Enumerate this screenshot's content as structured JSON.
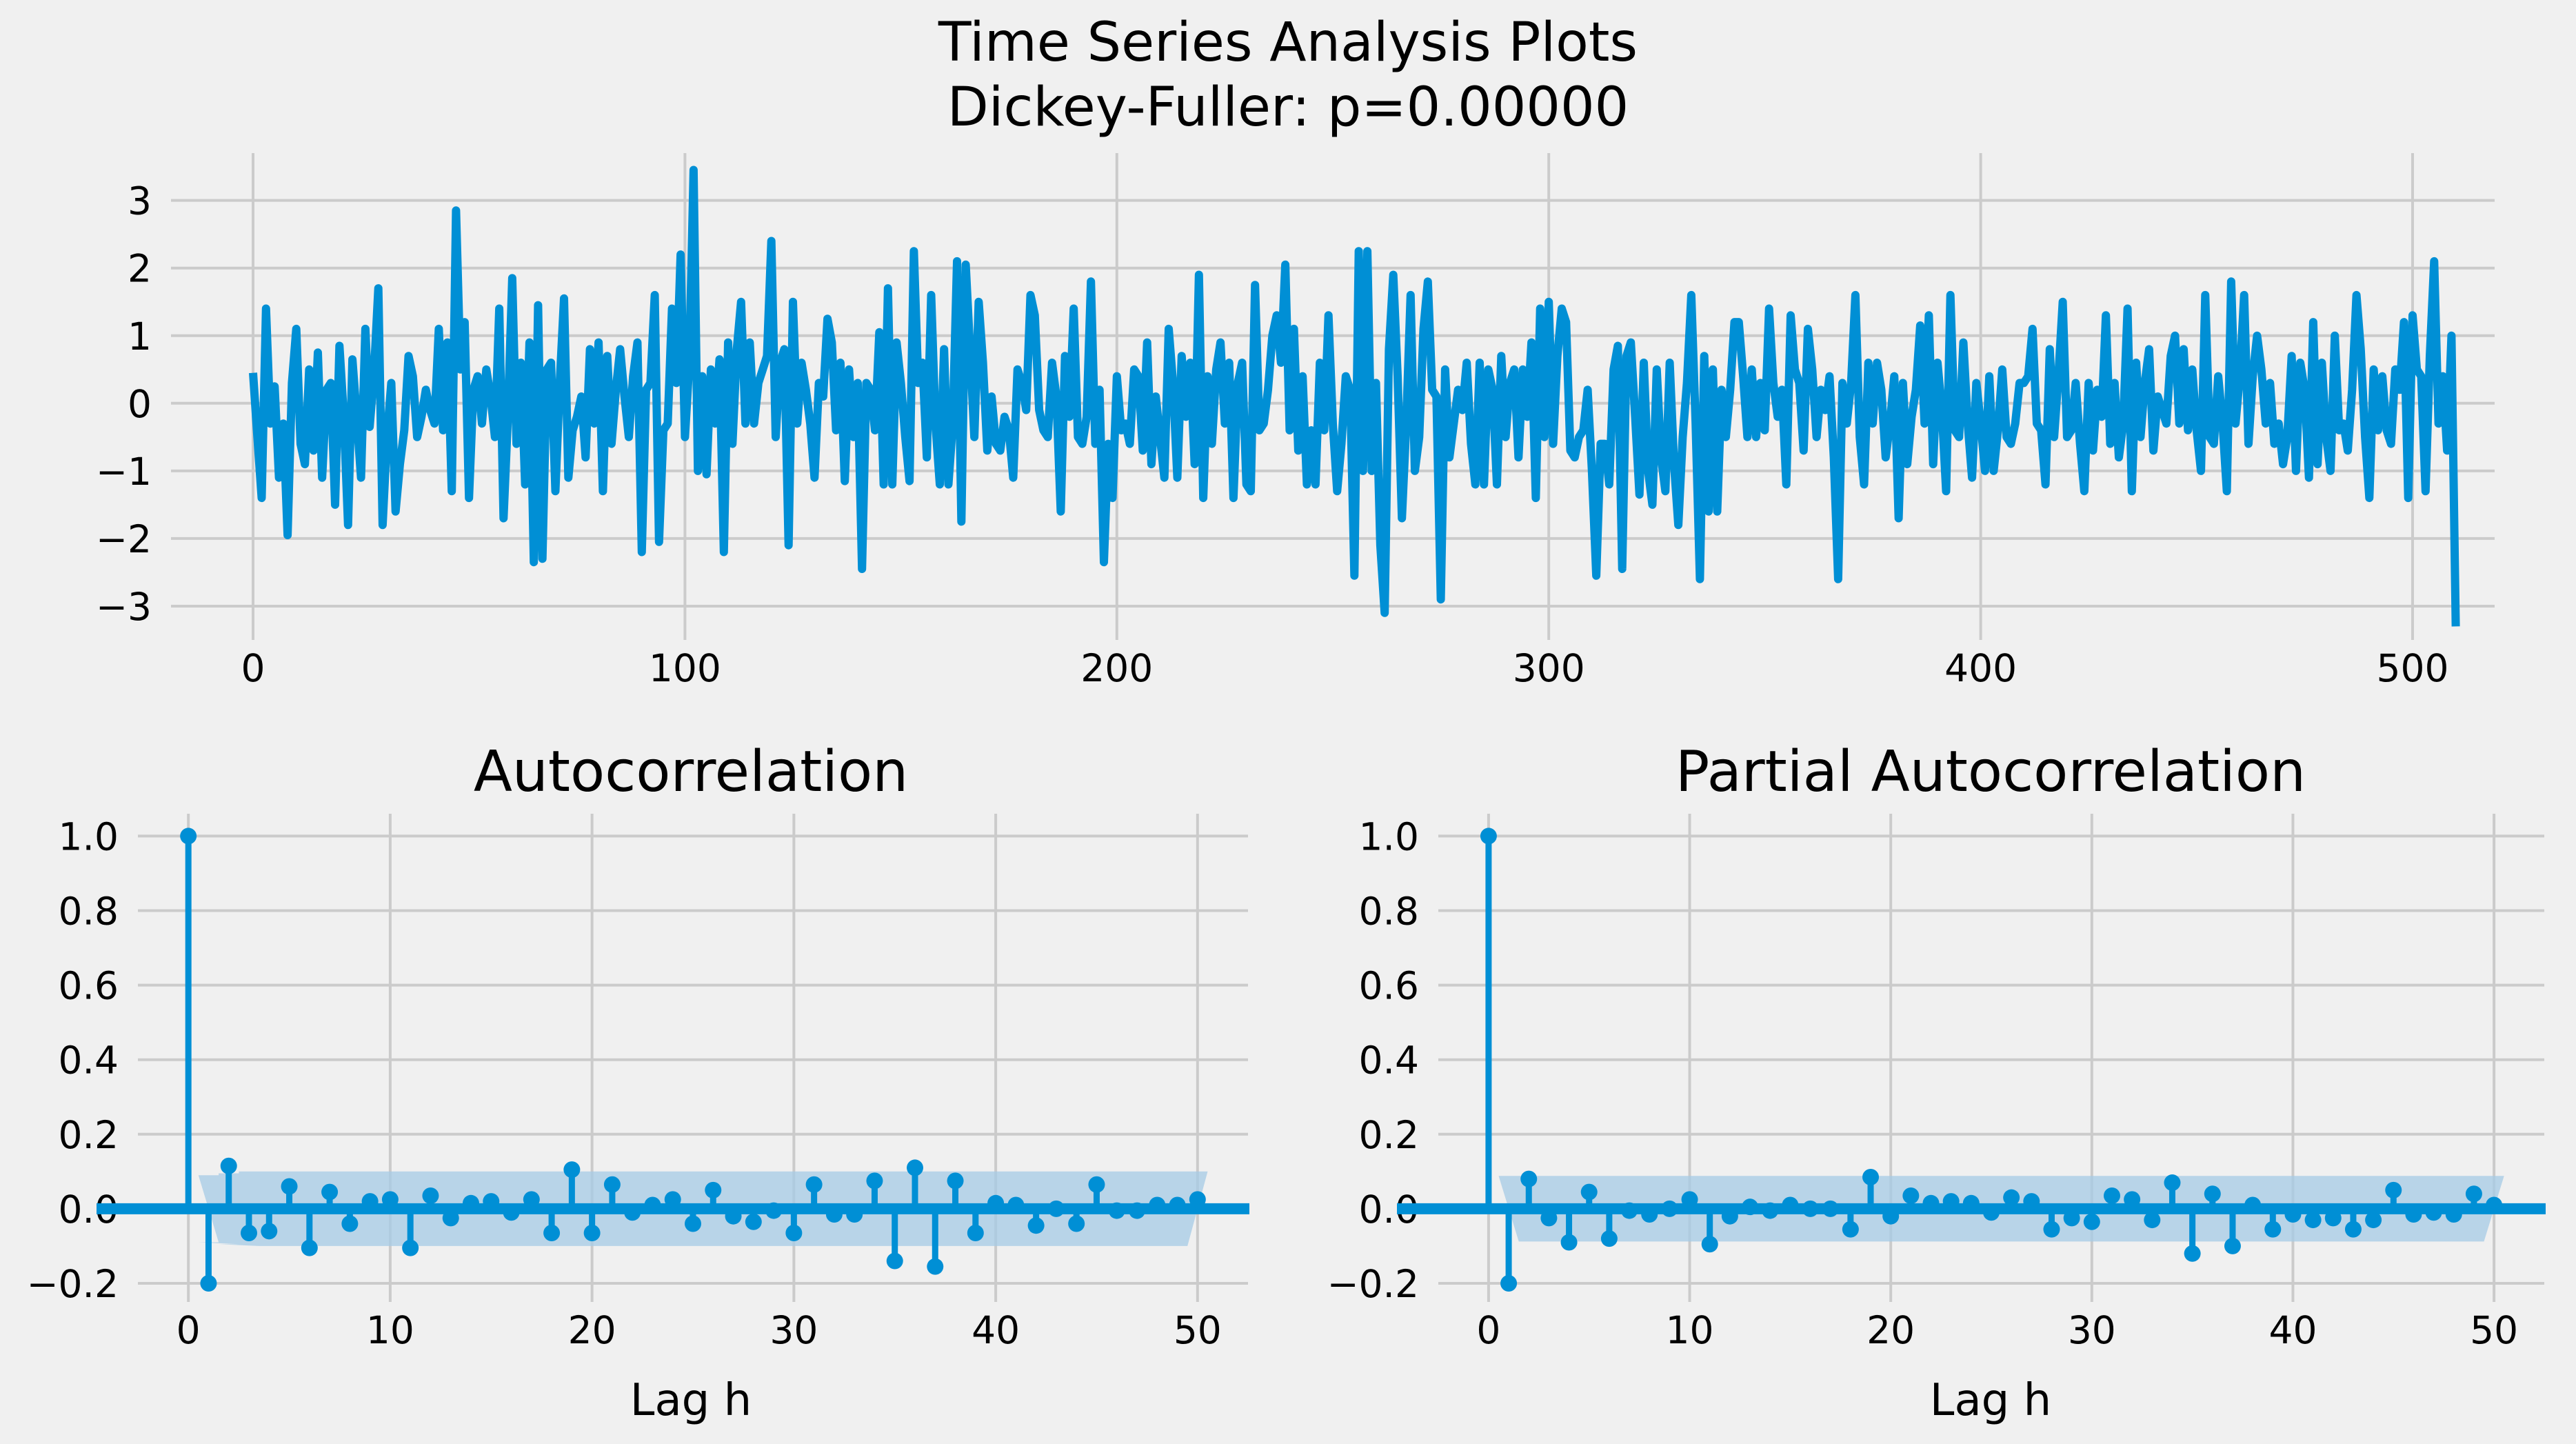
{
  "figure": {
    "suptitle_line1": "Time Series Analysis Plots",
    "suptitle_line2": "Dickey-Fuller: p=0.00000",
    "background": "#f0f0f0",
    "line_color": "#008fd5",
    "band_color": "#a5cbe6",
    "grid_color": "#cbcbcb"
  },
  "chart_data": [
    {
      "type": "line",
      "title": "",
      "xlabel": "",
      "ylabel": "",
      "xlim": [
        -19,
        519
      ],
      "ylim": [
        -3.5,
        3.7
      ],
      "xticks": [
        0,
        100,
        200,
        300,
        400,
        500
      ],
      "yticks": [
        3,
        2,
        1,
        0,
        -1,
        -2,
        -3
      ],
      "ytick_labels": [
        "3",
        "2",
        "1",
        "0",
        "−1",
        "−2",
        "−3"
      ],
      "grid": true,
      "series": [
        {
          "color": "#008fd5",
          "x_start": 0,
          "x_step": 1,
          "values": [
            0.45,
            -0.5,
            -1.4,
            1.4,
            -0.3,
            0.25,
            -1.1,
            -0.3,
            -1.95,
            0.3,
            1.1,
            -0.6,
            -0.9,
            0.5,
            -0.7,
            0.75,
            -1.1,
            0.2,
            0.3,
            -1.5,
            0.85,
            -0.2,
            -1.8,
            0.65,
            -0.2,
            -1.1,
            1.1,
            -0.35,
            0.45,
            1.7,
            -1.8,
            -0.5,
            0.3,
            -1.6,
            -0.9,
            -0.4,
            0.7,
            0.4,
            -0.5,
            -0.2,
            0.2,
            -0.1,
            -0.3,
            1.1,
            -0.4,
            0.9,
            -1.3,
            2.85,
            0.5,
            1.2,
            -1.4,
            0.2,
            0.4,
            -0.3,
            0.5,
            0.1,
            -0.5,
            1.4,
            -1.7,
            -0.2,
            1.85,
            -0.6,
            0.6,
            -1.2,
            0.9,
            -2.35,
            1.45,
            -2.3,
            0.5,
            0.6,
            -1.3,
            0.3,
            1.55,
            -1.1,
            -0.4,
            -0.2,
            0.1,
            -0.8,
            0.8,
            -0.3,
            0.9,
            -1.3,
            0.7,
            -0.6,
            0.2,
            0.8,
            0.1,
            -0.5,
            0.4,
            0.9,
            -2.2,
            0.2,
            0.3,
            1.6,
            -2.05,
            -0.4,
            -0.3,
            1.4,
            0.3,
            2.2,
            -0.5,
            0.6,
            3.45,
            -1.0,
            0.4,
            -1.05,
            0.5,
            -0.3,
            0.65,
            -2.2,
            0.9,
            -0.6,
            0.8,
            1.5,
            -0.3,
            0.9,
            -0.3,
            0.3,
            0.5,
            0.7,
            2.4,
            -0.5,
            0.6,
            0.8,
            -2.1,
            1.5,
            -0.3,
            0.6,
            0.2,
            -0.3,
            -1.1,
            0.3,
            0.1,
            1.25,
            0.9,
            -0.4,
            0.6,
            -1.15,
            0.5,
            -0.5,
            0.3,
            -2.45,
            0.3,
            0.2,
            -0.4,
            1.05,
            -1.2,
            1.7,
            -1.2,
            0.9,
            0.3,
            -0.5,
            -1.15,
            2.25,
            0.3,
            0.6,
            -0.8,
            1.6,
            -0.3,
            -1.2,
            0.8,
            -1.2,
            -0.3,
            2.1,
            -1.75,
            2.05,
            0.8,
            -0.5,
            1.5,
            0.6,
            -0.7,
            0.1,
            -0.6,
            -0.7,
            -0.2,
            -0.4,
            -1.1,
            0.5,
            0.3,
            -0.1,
            1.6,
            1.3,
            -0.1,
            -0.4,
            -0.5,
            0.6,
            0.1,
            -1.6,
            0.7,
            -0.2,
            1.4,
            -0.5,
            -0.6,
            -0.2,
            1.8,
            -0.6,
            0.2,
            -2.35,
            -0.6,
            -1.4,
            0.4,
            -0.4,
            -0.3,
            -0.6,
            0.5,
            0.4,
            -0.7,
            0.9,
            -0.9,
            0.1,
            -0.5,
            -1.1,
            1.1,
            0.3,
            -1.1,
            0.7,
            -0.2,
            0.6,
            -0.9,
            1.9,
            -1.4,
            0.4,
            -0.6,
            0.5,
            0.9,
            -0.3,
            0.6,
            -1.4,
            0.3,
            0.6,
            -1.2,
            -1.3,
            1.75,
            -0.4,
            -0.3,
            0.2,
            1.0,
            1.3,
            0.6,
            2.05,
            -0.4,
            1.1,
            -0.7,
            0.4,
            -1.2,
            -0.4,
            -1.2,
            0.6,
            -0.4,
            1.3,
            -0.3,
            -1.3,
            -0.6,
            0.4,
            0.2,
            -2.55,
            2.25,
            -1.0,
            2.25,
            -1.0,
            0.3,
            -2.1,
            -3.1,
            0.8,
            1.9,
            0.4,
            -1.7,
            -0.3,
            1.6,
            -1.0,
            -0.5,
            1.1,
            1.8,
            0.2,
            0.1,
            -2.9,
            0.5,
            -0.8,
            -0.3,
            0.2,
            -0.1,
            0.6,
            -0.6,
            -1.2,
            0.6,
            -1.2,
            0.5,
            0.2,
            -1.2,
            0.7,
            -0.5,
            0.3,
            0.5,
            -0.8,
            0.5,
            -0.2,
            0.9,
            -1.4,
            1.4,
            -0.5,
            1.5,
            -0.6,
            0.7,
            1.4,
            1.2,
            -0.7,
            -0.8,
            -0.5,
            -0.4,
            0.2,
            -1.0,
            -2.55,
            -0.6,
            -0.6,
            -1.2,
            0.5,
            0.85,
            -2.45,
            0.7,
            0.9,
            -0.2,
            -1.35,
            0.6,
            -1.0,
            -1.5,
            0.5,
            -0.8,
            -1.3,
            0.6,
            -0.9,
            -1.8,
            -0.5,
            0.3,
            1.6,
            -0.3,
            -2.6,
            0.7,
            -1.6,
            0.5,
            -1.6,
            0.2,
            -0.5,
            0.2,
            1.2,
            1.2,
            0.4,
            -0.5,
            0.5,
            -0.5,
            0.3,
            -0.4,
            1.4,
            0.3,
            -0.2,
            0.2,
            -1.2,
            1.3,
            0.5,
            0.3,
            -0.7,
            1.1,
            0.5,
            -0.5,
            0.2,
            -0.1,
            0.4,
            -0.8,
            -2.6,
            0.3,
            -0.3,
            0.3,
            1.6,
            -0.5,
            -1.2,
            0.6,
            -0.3,
            0.6,
            0.2,
            -0.8,
            -0.3,
            0.4,
            -1.7,
            0.3,
            -0.9,
            -0.2,
            0.2,
            1.15,
            -0.3,
            1.3,
            -0.9,
            0.6,
            -0.1,
            -1.3,
            1.6,
            -0.4,
            -0.5,
            0.9,
            -0.3,
            -1.1,
            0.3,
            -0.3,
            -1.0,
            0.4,
            -1.0,
            -0.4,
            0.5,
            -0.5,
            -0.6,
            -0.3,
            0.3,
            0.3,
            0.4,
            1.1,
            -0.3,
            -0.4,
            -1.2,
            0.8,
            -0.5,
            0.4,
            1.5,
            -0.5,
            -0.4,
            0.3,
            -0.6,
            -1.3,
            0.3,
            -0.7,
            0.2,
            -0.2,
            1.3,
            -0.6,
            0.3,
            -0.8,
            -0.3,
            1.4,
            -1.3,
            0.6,
            -0.5,
            0.3,
            0.8,
            -0.7,
            0.1,
            -0.1,
            -0.3,
            0.7,
            1.0,
            -0.3,
            0.8,
            -0.4,
            0.5,
            -0.4,
            -1.0,
            1.6,
            -0.5,
            -0.6,
            0.4,
            -0.3,
            -1.3,
            1.8,
            -0.3,
            0.4,
            1.6,
            -0.6,
            0.4,
            1.0,
            0.5,
            -0.3,
            0.3,
            -0.6,
            -0.3,
            -0.9,
            -0.5,
            0.7,
            -1.0,
            0.6,
            0.2,
            -1.1,
            1.2,
            -0.9,
            0.6,
            -0.5,
            -1.0,
            1.0,
            -0.4,
            -0.3,
            -0.7,
            0.2,
            1.6,
            0.8,
            -0.5,
            -1.4,
            0.5,
            -0.4,
            0.4,
            -0.4,
            -0.6,
            0.5,
            0.2,
            1.2,
            -1.4,
            1.3,
            0.5,
            0.4,
            -1.3,
            0.7,
            2.1,
            -0.3,
            0.4,
            -0.7,
            1.0,
            -3.3
          ]
        }
      ]
    },
    {
      "type": "stem",
      "title": "Autocorrelation",
      "xlabel": "Lag h",
      "ylabel": "",
      "xlim": [
        -2.5,
        52.5
      ],
      "ylim": [
        -0.25,
        1.06
      ],
      "xticks": [
        0,
        10,
        20,
        30,
        40,
        50
      ],
      "yticks": [
        1.0,
        0.8,
        0.6,
        0.4,
        0.2,
        0.0,
        -0.2
      ],
      "ytick_labels": [
        "1.0",
        "0.8",
        "0.6",
        "0.4",
        "0.2",
        "0.0",
        "−0.2"
      ],
      "grid": true,
      "lags": [
        0,
        1,
        2,
        3,
        4,
        5,
        6,
        7,
        8,
        9,
        10,
        11,
        12,
        13,
        14,
        15,
        16,
        17,
        18,
        19,
        20,
        21,
        22,
        23,
        24,
        25,
        26,
        27,
        28,
        29,
        30,
        31,
        32,
        33,
        34,
        35,
        36,
        37,
        38,
        39,
        40,
        41,
        42,
        43,
        44,
        45,
        46,
        47,
        48,
        49,
        50
      ],
      "values": [
        1.0,
        -0.2,
        0.115,
        -0.065,
        -0.06,
        0.06,
        -0.105,
        0.045,
        -0.04,
        0.02,
        0.025,
        -0.105,
        0.035,
        -0.025,
        0.015,
        0.02,
        -0.01,
        0.025,
        -0.065,
        0.105,
        -0.065,
        0.065,
        -0.01,
        0.01,
        0.025,
        -0.04,
        0.05,
        -0.02,
        -0.035,
        -0.005,
        -0.065,
        0.065,
        -0.015,
        -0.015,
        0.075,
        -0.14,
        0.11,
        -0.155,
        0.075,
        -0.065,
        0.015,
        0.01,
        -0.045,
        0.0,
        -0.04,
        0.065,
        -0.005,
        -0.005,
        0.01,
        0.01,
        0.025
      ],
      "confidence_band": {
        "lower": [
          -0.09,
          -0.095,
          -0.1,
          -0.1,
          -0.1,
          -0.1,
          -0.1,
          -0.1,
          -0.1,
          -0.1,
          -0.1,
          -0.1,
          -0.1,
          -0.1,
          -0.1,
          -0.1,
          -0.1,
          -0.1,
          -0.1,
          -0.1,
          -0.1,
          -0.1,
          -0.1,
          -0.1,
          -0.1,
          -0.1,
          -0.1,
          -0.1,
          -0.1,
          -0.1,
          -0.1,
          -0.1,
          -0.1,
          -0.1,
          -0.1,
          -0.1,
          -0.1,
          -0.1,
          -0.1,
          -0.1,
          -0.1,
          -0.1,
          -0.1,
          -0.1,
          -0.1,
          -0.1,
          -0.1,
          -0.1,
          -0.1,
          -0.1
        ],
        "upper": [
          0.09,
          0.095,
          0.1,
          0.1,
          0.1,
          0.1,
          0.1,
          0.1,
          0.1,
          0.1,
          0.1,
          0.1,
          0.1,
          0.1,
          0.1,
          0.1,
          0.1,
          0.1,
          0.1,
          0.1,
          0.1,
          0.1,
          0.1,
          0.1,
          0.1,
          0.1,
          0.1,
          0.1,
          0.1,
          0.1,
          0.1,
          0.1,
          0.1,
          0.1,
          0.1,
          0.1,
          0.1,
          0.1,
          0.1,
          0.1,
          0.1,
          0.1,
          0.1,
          0.1,
          0.1,
          0.1,
          0.1,
          0.1,
          0.1,
          0.1
        ]
      }
    },
    {
      "type": "stem",
      "title": "Partial Autocorrelation",
      "xlabel": "Lag h",
      "ylabel": "",
      "xlim": [
        -2.5,
        52.5
      ],
      "ylim": [
        -0.25,
        1.06
      ],
      "xticks": [
        0,
        10,
        20,
        30,
        40,
        50
      ],
      "yticks": [
        1.0,
        0.8,
        0.6,
        0.4,
        0.2,
        0.0,
        -0.2
      ],
      "ytick_labels": [
        "1.0",
        "0.8",
        "0.6",
        "0.4",
        "0.2",
        "0.0",
        "−0.2"
      ],
      "grid": true,
      "lags": [
        0,
        1,
        2,
        3,
        4,
        5,
        6,
        7,
        8,
        9,
        10,
        11,
        12,
        13,
        14,
        15,
        16,
        17,
        18,
        19,
        20,
        21,
        22,
        23,
        24,
        25,
        26,
        27,
        28,
        29,
        30,
        31,
        32,
        33,
        34,
        35,
        36,
        37,
        38,
        39,
        40,
        41,
        42,
        43,
        44,
        45,
        46,
        47,
        48,
        49,
        50
      ],
      "values": [
        1.0,
        -0.2,
        0.08,
        -0.025,
        -0.09,
        0.045,
        -0.08,
        -0.005,
        -0.015,
        0.0,
        0.025,
        -0.095,
        -0.02,
        0.005,
        -0.005,
        0.01,
        0.0,
        0.0,
        -0.055,
        0.085,
        -0.02,
        0.035,
        0.015,
        0.02,
        0.015,
        -0.01,
        0.03,
        0.02,
        -0.055,
        -0.025,
        -0.035,
        0.035,
        0.025,
        -0.03,
        0.07,
        -0.12,
        0.04,
        -0.1,
        0.01,
        -0.055,
        -0.015,
        -0.03,
        -0.025,
        -0.055,
        -0.03,
        0.05,
        -0.015,
        -0.01,
        -0.015,
        0.04,
        0.01
      ],
      "confidence_band": {
        "lower": [
          -0.088,
          -0.088,
          -0.088,
          -0.088,
          -0.088,
          -0.088,
          -0.088,
          -0.088,
          -0.088,
          -0.088,
          -0.088,
          -0.088,
          -0.088,
          -0.088,
          -0.088,
          -0.088,
          -0.088,
          -0.088,
          -0.088,
          -0.088,
          -0.088,
          -0.088,
          -0.088,
          -0.088,
          -0.088,
          -0.088,
          -0.088,
          -0.088,
          -0.088,
          -0.088,
          -0.088,
          -0.088,
          -0.088,
          -0.088,
          -0.088,
          -0.088,
          -0.088,
          -0.088,
          -0.088,
          -0.088,
          -0.088,
          -0.088,
          -0.088,
          -0.088,
          -0.088,
          -0.088,
          -0.088,
          -0.088,
          -0.088,
          -0.088
        ],
        "upper": [
          0.088,
          0.088,
          0.088,
          0.088,
          0.088,
          0.088,
          0.088,
          0.088,
          0.088,
          0.088,
          0.088,
          0.088,
          0.088,
          0.088,
          0.088,
          0.088,
          0.088,
          0.088,
          0.088,
          0.088,
          0.088,
          0.088,
          0.088,
          0.088,
          0.088,
          0.088,
          0.088,
          0.088,
          0.088,
          0.088,
          0.088,
          0.088,
          0.088,
          0.088,
          0.088,
          0.088,
          0.088,
          0.088,
          0.088,
          0.088,
          0.088,
          0.088,
          0.088,
          0.088,
          0.088,
          0.088,
          0.088,
          0.088,
          0.088,
          0.088
        ]
      }
    }
  ]
}
